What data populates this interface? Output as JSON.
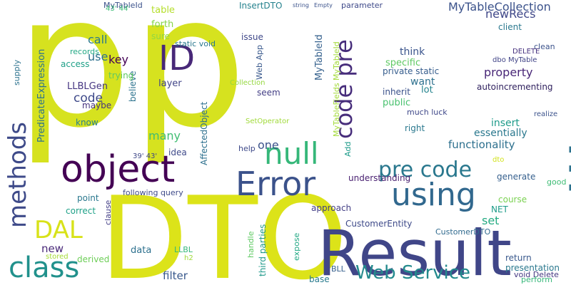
{
  "words": [
    {
      "text": "pp",
      "color": "#d6e21f"
    },
    {
      "text": "DTO",
      "color": "#dce319"
    },
    {
      "text": "Result",
      "color": "#404688"
    },
    {
      "text": "will",
      "color": "#2c728e"
    },
    {
      "text": "object",
      "color": "#440154"
    },
    {
      "text": "ID",
      "color": "#482878"
    },
    {
      "text": "Error",
      "color": "#3b528b"
    },
    {
      "text": "using",
      "color": "#31688e"
    },
    {
      "text": "class",
      "color": "#21918c"
    },
    {
      "text": "null",
      "color": "#35b779"
    },
    {
      "text": "methods",
      "color": "#3e4a89"
    },
    {
      "text": "code pre",
      "color": "#472d7b"
    },
    {
      "text": "pre code",
      "color": "#2a788e"
    },
    {
      "text": "Web Service",
      "color": "#238a8d"
    },
    {
      "text": "DAL",
      "color": "#d8e219"
    },
    {
      "text": "MyTableCollection",
      "color": "#3b528b"
    },
    {
      "text": "MyTableId",
      "color": "#34608d"
    },
    {
      "text": "InsertDTO",
      "color": "#26828e"
    },
    {
      "text": "newRecs",
      "color": "#3f4788"
    },
    {
      "text": "table",
      "color": "#b5de2b"
    },
    {
      "text": "forth",
      "color": "#86d549"
    },
    {
      "text": "sure",
      "color": "#90d743"
    },
    {
      "text": "call",
      "color": "#2a788e"
    },
    {
      "text": "key",
      "color": "#440154"
    },
    {
      "text": "use",
      "color": "#2d708e"
    },
    {
      "text": "access",
      "color": "#1fa088"
    },
    {
      "text": "records",
      "color": "#22a884"
    },
    {
      "text": "LLBLGen",
      "color": "#453581"
    },
    {
      "text": "code",
      "color": "#3e4989"
    },
    {
      "text": "maybe",
      "color": "#46327e"
    },
    {
      "text": "know",
      "color": "#277f8e"
    },
    {
      "text": "believe",
      "color": "#2c728e"
    },
    {
      "text": "layer",
      "color": "#414487"
    },
    {
      "text": "trying",
      "color": "#5ec962"
    },
    {
      "text": "static void",
      "color": "#2a788e"
    },
    {
      "text": "issue",
      "color": "#3f4889"
    },
    {
      "text": "seem",
      "color": "#433e85"
    },
    {
      "text": "Collection",
      "color": "#95d840"
    },
    {
      "text": "Web App",
      "color": "#38588c"
    },
    {
      "text": "think",
      "color": "#3a548c"
    },
    {
      "text": "specific",
      "color": "#5ec962"
    },
    {
      "text": "private static",
      "color": "#365d8d"
    },
    {
      "text": "want",
      "color": "#2d708e"
    },
    {
      "text": "lot",
      "color": "#25848e"
    },
    {
      "text": "inherit",
      "color": "#3b528b"
    },
    {
      "text": "public",
      "color": "#48c16e"
    },
    {
      "text": "much luck",
      "color": "#3f4889"
    },
    {
      "text": "right",
      "color": "#2a788e"
    },
    {
      "text": "insert",
      "color": "#1e9b8a"
    },
    {
      "text": "essentially",
      "color": "#2a788e"
    },
    {
      "text": "functionality",
      "color": "#2d708e"
    },
    {
      "text": "understanding",
      "color": "#481f70"
    },
    {
      "text": "approach",
      "color": "#433e85"
    },
    {
      "text": "set",
      "color": "#25ab82"
    },
    {
      "text": "NET",
      "color": "#1e9c89"
    },
    {
      "text": "course",
      "color": "#7ad151"
    },
    {
      "text": "generate",
      "color": "#355f8d"
    },
    {
      "text": "good",
      "color": "#3dbc74"
    },
    {
      "text": "client",
      "color": "#2a788e"
    },
    {
      "text": "clean",
      "color": "#3b528b"
    },
    {
      "text": "DELETE",
      "color": "#46307e"
    },
    {
      "text": "dbo MyTable",
      "color": "#414487"
    },
    {
      "text": "property",
      "color": "#482677"
    },
    {
      "text": "autoincrementing",
      "color": "#2d1e5c"
    },
    {
      "text": "realize",
      "color": "#3b528b"
    },
    {
      "text": "CustomerEntity",
      "color": "#3e4a89"
    },
    {
      "text": "CustomerDTO",
      "color": "#306a8e"
    },
    {
      "text": "return",
      "color": "#38588c"
    },
    {
      "text": "presentation",
      "color": "#2a788e"
    },
    {
      "text": "void Delete",
      "color": "#453882"
    },
    {
      "text": "perform",
      "color": "#35b779"
    },
    {
      "text": "BLL",
      "color": "#355f8d"
    },
    {
      "text": "base",
      "color": "#297b8e"
    },
    {
      "text": "expose",
      "color": "#22a884"
    },
    {
      "text": "third parties",
      "color": "#1f998a"
    },
    {
      "text": "handle",
      "color": "#5ec962"
    },
    {
      "text": "data",
      "color": "#2d708e"
    },
    {
      "text": "LLBL",
      "color": "#35b779"
    },
    {
      "text": "h2",
      "color": "#9fda3a"
    },
    {
      "text": "filter",
      "color": "#38588c"
    },
    {
      "text": "derived",
      "color": "#6ece58"
    },
    {
      "text": "stored",
      "color": "#a5db36"
    },
    {
      "text": "new",
      "color": "#482878"
    },
    {
      "text": "clause",
      "color": "#433e85"
    },
    {
      "text": "correct",
      "color": "#1fa188"
    },
    {
      "text": "point",
      "color": "#2a788e"
    },
    {
      "text": "following query",
      "color": "#3e4a89"
    },
    {
      "text": "idea",
      "color": "#3e4989"
    },
    {
      "text": "many",
      "color": "#40bd72"
    },
    {
      "text": "AffectedObject",
      "color": "#2d708e"
    },
    {
      "text": "39' 43'",
      "color": "#3f4788"
    },
    {
      "text": "MyTableFields MyTableId",
      "color": "#a2da37"
    },
    {
      "text": "SetOperator",
      "color": "#a0da39"
    },
    {
      "text": "help",
      "color": "#3e4989"
    },
    {
      "text": "one",
      "color": "#3b528b"
    },
    {
      "text": "Add",
      "color": "#1e9b8a"
    },
    {
      "text": "PredicateExpression",
      "color": "#2c728e"
    },
    {
      "text": "supply",
      "color": "#2c728e"
    },
    {
      "text": "MyTableId",
      "color": "#3b528b"
    },
    {
      "text": "43' 44'",
      "color": "#3bbb75"
    },
    {
      "text": "parameter",
      "color": "#3e4989"
    },
    {
      "text": "string",
      "color": "#3b528b"
    },
    {
      "text": "Empty",
      "color": "#3b528b"
    },
    {
      "text": "dto",
      "color": "#d2e21b"
    }
  ]
}
